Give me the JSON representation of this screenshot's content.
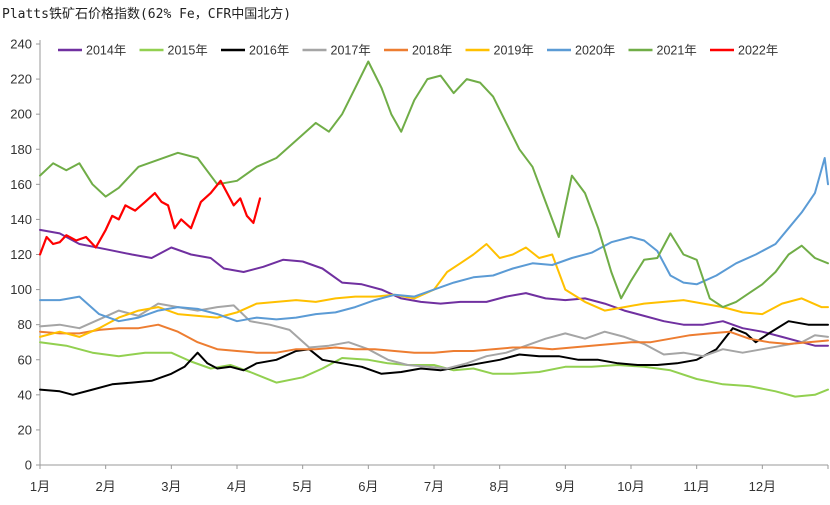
{
  "chart_data": {
    "type": "line",
    "title": "Platts铁矿石价格指数(62% Fe，CFR中国北方)",
    "xlabel": "",
    "ylabel": "",
    "ylim": [
      0,
      240
    ],
    "yticks": [
      0,
      20,
      40,
      60,
      80,
      100,
      120,
      140,
      160,
      180,
      200,
      220,
      240
    ],
    "xlim": [
      0,
      12
    ],
    "xticks": [
      "1月",
      "2月",
      "3月",
      "4月",
      "5月",
      "6月",
      "7月",
      "8月",
      "9月",
      "10月",
      "11月",
      "12月"
    ],
    "grid": false,
    "legend_position": "top",
    "series": [
      {
        "name": "2014年",
        "color": "#7030a0",
        "x": [
          0.0,
          0.3,
          0.6,
          1.0,
          1.4,
          1.7,
          2.0,
          2.3,
          2.6,
          2.8,
          3.1,
          3.4,
          3.7,
          4.0,
          4.3,
          4.6,
          4.9,
          5.2,
          5.5,
          5.8,
          6.1,
          6.4,
          6.8,
          7.1,
          7.4,
          7.7,
          8.0,
          8.3,
          8.6,
          8.9,
          9.2,
          9.5,
          9.8,
          10.1,
          10.4,
          10.7,
          11.0,
          11.3,
          11.6,
          11.8,
          12.0
        ],
        "values": [
          134,
          132,
          126,
          123,
          120,
          118,
          124,
          120,
          118,
          112,
          110,
          113,
          117,
          116,
          112,
          104,
          103,
          100,
          95,
          93,
          92,
          93,
          93,
          96,
          98,
          95,
          94,
          95,
          92,
          88,
          85,
          82,
          80,
          80,
          82,
          78,
          76,
          73,
          70,
          68,
          68
        ]
      },
      {
        "name": "2015年",
        "color": "#92d050",
        "x": [
          0.0,
          0.4,
          0.8,
          1.2,
          1.6,
          2.0,
          2.3,
          2.6,
          2.9,
          3.2,
          3.6,
          4.0,
          4.3,
          4.6,
          5.0,
          5.3,
          5.6,
          6.0,
          6.3,
          6.6,
          6.9,
          7.2,
          7.6,
          8.0,
          8.4,
          8.8,
          9.2,
          9.6,
          10.0,
          10.4,
          10.8,
          11.2,
          11.5,
          11.8,
          12.0
        ],
        "values": [
          70,
          68,
          64,
          62,
          64,
          64,
          59,
          55,
          57,
          53,
          47,
          50,
          55,
          61,
          60,
          58,
          57,
          57,
          54,
          55,
          52,
          52,
          53,
          56,
          56,
          57,
          56,
          54,
          49,
          46,
          45,
          42,
          39,
          40,
          43
        ]
      },
      {
        "name": "2016年",
        "color": "#000000",
        "x": [
          0.0,
          0.3,
          0.5,
          0.8,
          1.1,
          1.4,
          1.7,
          2.0,
          2.2,
          2.4,
          2.55,
          2.7,
          2.9,
          3.1,
          3.3,
          3.6,
          3.9,
          4.1,
          4.3,
          4.6,
          4.9,
          5.2,
          5.5,
          5.8,
          6.1,
          6.4,
          6.7,
          7.0,
          7.3,
          7.6,
          7.9,
          8.2,
          8.5,
          8.8,
          9.1,
          9.4,
          9.7,
          10.0,
          10.3,
          10.55,
          10.75,
          10.9,
          11.1,
          11.4,
          11.7,
          12.0
        ],
        "values": [
          43,
          42,
          40,
          43,
          46,
          47,
          48,
          52,
          56,
          64,
          58,
          55,
          56,
          54,
          58,
          60,
          65,
          66,
          60,
          58,
          56,
          52,
          53,
          55,
          54,
          56,
          58,
          60,
          63,
          62,
          62,
          60,
          60,
          58,
          57,
          57,
          58,
          60,
          66,
          78,
          75,
          70,
          75,
          82,
          80,
          80
        ]
      },
      {
        "name": "2017年",
        "color": "#a5a5a5",
        "x": [
          0.0,
          0.3,
          0.6,
          0.9,
          1.2,
          1.5,
          1.8,
          2.1,
          2.4,
          2.7,
          2.95,
          3.2,
          3.5,
          3.8,
          4.1,
          4.4,
          4.7,
          5.0,
          5.3,
          5.6,
          5.9,
          6.2,
          6.5,
          6.8,
          7.1,
          7.4,
          7.7,
          8.0,
          8.3,
          8.6,
          8.9,
          9.2,
          9.5,
          9.8,
          10.1,
          10.4,
          10.7,
          11.0,
          11.3,
          11.6,
          11.8,
          12.0
        ],
        "values": [
          79,
          80,
          78,
          83,
          88,
          85,
          92,
          90,
          88,
          90,
          91,
          82,
          80,
          77,
          67,
          68,
          70,
          66,
          60,
          57,
          56,
          55,
          58,
          62,
          64,
          68,
          72,
          75,
          72,
          76,
          73,
          69,
          63,
          64,
          62,
          66,
          64,
          66,
          68,
          70,
          74,
          73
        ]
      },
      {
        "name": "2018年",
        "color": "#ed7d31",
        "x": [
          0.0,
          0.3,
          0.6,
          0.9,
          1.2,
          1.5,
          1.8,
          2.1,
          2.4,
          2.7,
          3.0,
          3.3,
          3.6,
          3.9,
          4.2,
          4.5,
          4.8,
          5.1,
          5.4,
          5.7,
          6.0,
          6.3,
          6.6,
          6.9,
          7.2,
          7.5,
          7.8,
          8.1,
          8.4,
          8.7,
          9.0,
          9.3,
          9.6,
          9.9,
          10.2,
          10.5,
          10.8,
          11.1,
          11.4,
          11.7,
          12.0
        ],
        "values": [
          76,
          75,
          75,
          77,
          78,
          78,
          80,
          76,
          70,
          66,
          65,
          64,
          64,
          66,
          66,
          67,
          66,
          66,
          65,
          64,
          64,
          65,
          65,
          66,
          67,
          67,
          66,
          67,
          68,
          69,
          70,
          70,
          72,
          74,
          75,
          76,
          72,
          70,
          69,
          70,
          71
        ]
      },
      {
        "name": "2019年",
        "color": "#ffc000",
        "x": [
          0.0,
          0.3,
          0.6,
          0.9,
          1.2,
          1.5,
          1.8,
          2.1,
          2.4,
          2.7,
          3.0,
          3.3,
          3.6,
          3.9,
          4.2,
          4.5,
          4.8,
          5.1,
          5.4,
          5.7,
          6.0,
          6.2,
          6.4,
          6.6,
          6.8,
          7.0,
          7.2,
          7.4,
          7.6,
          7.8,
          8.0,
          8.3,
          8.6,
          8.9,
          9.2,
          9.5,
          9.8,
          10.1,
          10.4,
          10.7,
          11.0,
          11.3,
          11.6,
          11.9,
          12.0
        ],
        "values": [
          73,
          76,
          73,
          78,
          84,
          88,
          90,
          86,
          85,
          84,
          87,
          92,
          93,
          94,
          93,
          95,
          96,
          96,
          97,
          95,
          100,
          110,
          115,
          120,
          126,
          118,
          120,
          124,
          118,
          120,
          100,
          93,
          88,
          90,
          92,
          93,
          94,
          92,
          90,
          87,
          86,
          92,
          95,
          90,
          90
        ]
      },
      {
        "name": "2020年",
        "color": "#5b9bd5",
        "x": [
          0.0,
          0.3,
          0.6,
          0.9,
          1.2,
          1.5,
          1.8,
          2.1,
          2.4,
          2.7,
          3.0,
          3.3,
          3.6,
          3.9,
          4.2,
          4.5,
          4.8,
          5.1,
          5.4,
          5.7,
          6.0,
          6.3,
          6.6,
          6.9,
          7.2,
          7.5,
          7.8,
          8.1,
          8.4,
          8.7,
          9.0,
          9.2,
          9.4,
          9.6,
          9.8,
          10.0,
          10.3,
          10.6,
          10.9,
          11.2,
          11.4,
          11.6,
          11.8,
          11.95,
          12.0
        ],
        "values": [
          94,
          94,
          96,
          86,
          82,
          84,
          88,
          90,
          89,
          86,
          82,
          84,
          83,
          84,
          86,
          87,
          90,
          94,
          97,
          96,
          100,
          104,
          107,
          108,
          112,
          115,
          114,
          118,
          121,
          127,
          130,
          128,
          122,
          108,
          104,
          103,
          108,
          115,
          120,
          126,
          135,
          144,
          155,
          175,
          160
        ]
      },
      {
        "name": "2021年",
        "color": "#70ad47",
        "x": [
          0.0,
          0.2,
          0.4,
          0.6,
          0.8,
          1.0,
          1.2,
          1.5,
          1.8,
          2.1,
          2.4,
          2.7,
          3.0,
          3.3,
          3.6,
          3.9,
          4.2,
          4.4,
          4.6,
          4.8,
          5.0,
          5.2,
          5.35,
          5.5,
          5.7,
          5.9,
          6.1,
          6.3,
          6.5,
          6.7,
          6.9,
          7.1,
          7.3,
          7.5,
          7.7,
          7.9,
          8.1,
          8.3,
          8.5,
          8.7,
          8.85,
          9.0,
          9.2,
          9.4,
          9.6,
          9.8,
          10.0,
          10.2,
          10.4,
          10.6,
          10.8,
          11.0,
          11.2,
          11.4,
          11.6,
          11.8,
          12.0
        ],
        "values": [
          165,
          172,
          168,
          172,
          160,
          153,
          158,
          170,
          174,
          178,
          175,
          160,
          162,
          170,
          175,
          185,
          195,
          190,
          200,
          215,
          230,
          215,
          200,
          190,
          208,
          220,
          222,
          212,
          220,
          218,
          210,
          195,
          180,
          170,
          150,
          130,
          165,
          155,
          135,
          110,
          95,
          105,
          117,
          118,
          132,
          120,
          117,
          95,
          90,
          93,
          98,
          103,
          110,
          120,
          125,
          118,
          115
        ]
      },
      {
        "name": "2022年",
        "color": "#ff0000",
        "x": [
          0.0,
          0.1,
          0.2,
          0.3,
          0.4,
          0.55,
          0.7,
          0.85,
          1.0,
          1.1,
          1.2,
          1.3,
          1.45,
          1.6,
          1.75,
          1.85,
          1.95,
          2.05,
          2.15,
          2.3,
          2.45,
          2.6,
          2.75,
          2.85,
          2.95,
          3.05,
          3.15,
          3.25,
          3.35
        ],
        "values": [
          120,
          130,
          126,
          127,
          131,
          128,
          130,
          124,
          134,
          142,
          140,
          148,
          145,
          150,
          155,
          150,
          148,
          135,
          140,
          135,
          150,
          155,
          162,
          155,
          148,
          152,
          142,
          138,
          152
        ]
      }
    ]
  }
}
